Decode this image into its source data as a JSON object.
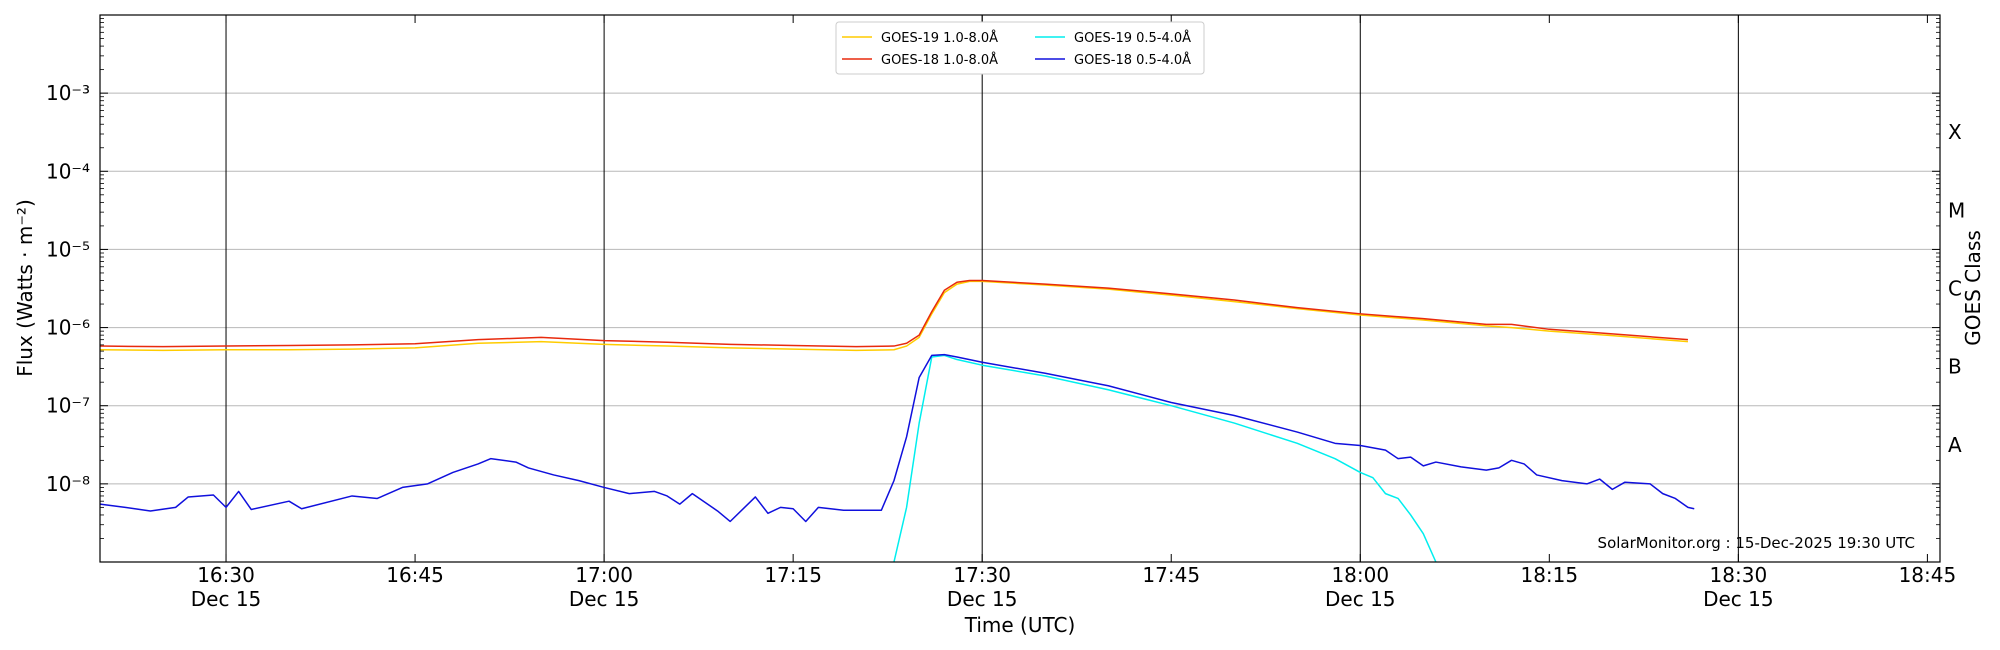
{
  "chart_data": {
    "type": "line",
    "xlabel": "Time (UTC)",
    "ylabel": "Flux (Watts · m⁻²)",
    "ylabel_right": "GOES Class",
    "y_scale": "log",
    "ylim": [
      1e-09,
      0.01
    ],
    "xlim": [
      "16:20",
      "18:46"
    ],
    "y_ticks": [
      {
        "value": 1e-08,
        "label": "10⁻⁸"
      },
      {
        "value": 1e-07,
        "label": "10⁻⁷"
      },
      {
        "value": 1e-06,
        "label": "10⁻⁶"
      },
      {
        "value": 1e-05,
        "label": "10⁻⁵"
      },
      {
        "value": 0.0001,
        "label": "10⁻⁴"
      },
      {
        "value": 0.001,
        "label": "10⁻³"
      }
    ],
    "x_ticks": [
      {
        "time": "16:30",
        "label": "16:30",
        "sublabel": "Dec 15"
      },
      {
        "time": "16:45",
        "label": "16:45",
        "sublabel": ""
      },
      {
        "time": "17:00",
        "label": "17:00",
        "sublabel": "Dec 15"
      },
      {
        "time": "17:15",
        "label": "17:15",
        "sublabel": ""
      },
      {
        "time": "17:30",
        "label": "17:30",
        "sublabel": "Dec 15"
      },
      {
        "time": "17:45",
        "label": "17:45",
        "sublabel": ""
      },
      {
        "time": "18:00",
        "label": "18:00",
        "sublabel": "Dec 15"
      },
      {
        "time": "18:15",
        "label": "18:15",
        "sublabel": ""
      },
      {
        "time": "18:30",
        "label": "18:30",
        "sublabel": "Dec 15"
      },
      {
        "time": "18:45",
        "label": "18:45",
        "sublabel": ""
      }
    ],
    "goes_classes": [
      {
        "label": "A",
        "value": 3.16e-08
      },
      {
        "label": "B",
        "value": 3.16e-07
      },
      {
        "label": "C",
        "value": 3.16e-06
      },
      {
        "label": "M",
        "value": 3.16e-05
      },
      {
        "label": "X",
        "value": 0.000316
      }
    ],
    "grid": "horizontal at decades, vertical at half hours",
    "legend_position": "top-center",
    "series": [
      {
        "name": "GOES-19 1.0-8.0Å",
        "color": "#ffcc00",
        "points": [
          [
            "16:20",
            5.2e-07
          ],
          [
            "16:25",
            5.1e-07
          ],
          [
            "16:30",
            5.2e-07
          ],
          [
            "16:35",
            5.2e-07
          ],
          [
            "16:40",
            5.3e-07
          ],
          [
            "16:45",
            5.5e-07
          ],
          [
            "16:50",
            6.3e-07
          ],
          [
            "16:55",
            6.6e-07
          ],
          [
            "17:00",
            6.1e-07
          ],
          [
            "17:05",
            5.8e-07
          ],
          [
            "17:10",
            5.5e-07
          ],
          [
            "17:15",
            5.3e-07
          ],
          [
            "17:20",
            5.1e-07
          ],
          [
            "17:23",
            5.2e-07
          ],
          [
            "17:24",
            5.8e-07
          ],
          [
            "17:25",
            7.5e-07
          ],
          [
            "17:26",
            1.5e-06
          ],
          [
            "17:27",
            2.8e-06
          ],
          [
            "17:28",
            3.6e-06
          ],
          [
            "17:29",
            3.9e-06
          ],
          [
            "17:30",
            3.9e-06
          ],
          [
            "17:35",
            3.5e-06
          ],
          [
            "17:40",
            3.1e-06
          ],
          [
            "17:45",
            2.6e-06
          ],
          [
            "17:50",
            2.15e-06
          ],
          [
            "17:55",
            1.75e-06
          ],
          [
            "18:00",
            1.45e-06
          ],
          [
            "18:05",
            1.25e-06
          ],
          [
            "18:10",
            1.05e-06
          ],
          [
            "18:12",
            1e-06
          ],
          [
            "18:15",
            9e-07
          ],
          [
            "18:20",
            7.9e-07
          ],
          [
            "18:26",
            6.6e-07
          ]
        ]
      },
      {
        "name": "GOES-18 1.0-8.0Å",
        "color": "#e82a0d",
        "points": [
          [
            "16:20",
            5.8e-07
          ],
          [
            "16:25",
            5.7e-07
          ],
          [
            "16:30",
            5.8e-07
          ],
          [
            "16:35",
            5.9e-07
          ],
          [
            "16:40",
            6e-07
          ],
          [
            "16:45",
            6.2e-07
          ],
          [
            "16:50",
            7e-07
          ],
          [
            "16:55",
            7.5e-07
          ],
          [
            "17:00",
            6.8e-07
          ],
          [
            "17:05",
            6.5e-07
          ],
          [
            "17:10",
            6.1e-07
          ],
          [
            "17:15",
            5.9e-07
          ],
          [
            "17:20",
            5.7e-07
          ],
          [
            "17:23",
            5.8e-07
          ],
          [
            "17:24",
            6.3e-07
          ],
          [
            "17:25",
            8e-07
          ],
          [
            "17:26",
            1.6e-06
          ],
          [
            "17:27",
            3e-06
          ],
          [
            "17:28",
            3.8e-06
          ],
          [
            "17:29",
            4e-06
          ],
          [
            "17:30",
            4e-06
          ],
          [
            "17:35",
            3.6e-06
          ],
          [
            "17:40",
            3.2e-06
          ],
          [
            "17:45",
            2.7e-06
          ],
          [
            "17:50",
            2.25e-06
          ],
          [
            "17:55",
            1.8e-06
          ],
          [
            "18:00",
            1.5e-06
          ],
          [
            "18:05",
            1.3e-06
          ],
          [
            "18:10",
            1.1e-06
          ],
          [
            "18:12",
            1.1e-06
          ],
          [
            "18:15",
            9.5e-07
          ],
          [
            "18:20",
            8.3e-07
          ],
          [
            "18:26",
            7e-07
          ]
        ]
      },
      {
        "name": "GOES-19 0.5-4.0Å",
        "color": "#00eeee",
        "points": [
          [
            "17:23",
            1e-09
          ],
          [
            "17:24",
            5e-09
          ],
          [
            "17:25",
            6e-08
          ],
          [
            "17:26",
            4.2e-07
          ],
          [
            "17:27",
            4.4e-07
          ],
          [
            "17:28",
            3.9e-07
          ],
          [
            "17:30",
            3.3e-07
          ],
          [
            "17:35",
            2.4e-07
          ],
          [
            "17:40",
            1.6e-07
          ],
          [
            "17:45",
            1e-07
          ],
          [
            "17:50",
            6e-08
          ],
          [
            "17:55",
            3.3e-08
          ],
          [
            "17:58",
            2.1e-08
          ],
          [
            "18:00",
            1.4e-08
          ],
          [
            "18:01",
            1.2e-08
          ],
          [
            "18:02",
            7.5e-09
          ],
          [
            "18:03",
            6.5e-09
          ],
          [
            "18:04",
            4e-09
          ],
          [
            "18:05",
            2.3e-09
          ],
          [
            "18:06",
            1e-09
          ]
        ]
      },
      {
        "name": "GOES-18 0.5-4.0Å",
        "color": "#1010dd",
        "points": [
          [
            "16:20",
            5.5e-09
          ],
          [
            "16:22",
            5e-09
          ],
          [
            "16:24",
            4.5e-09
          ],
          [
            "16:26",
            5e-09
          ],
          [
            "16:27",
            6.8e-09
          ],
          [
            "16:29",
            7.2e-09
          ],
          [
            "16:30",
            5e-09
          ],
          [
            "16:31",
            8e-09
          ],
          [
            "16:32",
            4.7e-09
          ],
          [
            "16:35",
            6e-09
          ],
          [
            "16:36",
            4.8e-09
          ],
          [
            "16:40",
            7e-09
          ],
          [
            "16:42",
            6.5e-09
          ],
          [
            "16:44",
            9e-09
          ],
          [
            "16:46",
            1e-08
          ],
          [
            "16:48",
            1.4e-08
          ],
          [
            "16:50",
            1.8e-08
          ],
          [
            "16:51",
            2.1e-08
          ],
          [
            "16:53",
            1.9e-08
          ],
          [
            "16:54",
            1.6e-08
          ],
          [
            "16:56",
            1.3e-08
          ],
          [
            "16:58",
            1.1e-08
          ],
          [
            "17:00",
            9e-09
          ],
          [
            "17:02",
            7.5e-09
          ],
          [
            "17:04",
            8e-09
          ],
          [
            "17:05",
            7e-09
          ],
          [
            "17:06",
            5.5e-09
          ],
          [
            "17:07",
            7.5e-09
          ],
          [
            "17:09",
            4.5e-09
          ],
          [
            "17:10",
            3.3e-09
          ],
          [
            "17:12",
            6.8e-09
          ],
          [
            "17:13",
            4.2e-09
          ],
          [
            "17:14",
            5e-09
          ],
          [
            "17:15",
            4.8e-09
          ],
          [
            "17:16",
            3.3e-09
          ],
          [
            "17:17",
            5e-09
          ],
          [
            "17:19",
            4.6e-09
          ],
          [
            "17:21",
            4.6e-09
          ],
          [
            "17:22",
            4.6e-09
          ],
          [
            "17:23",
            1.1e-08
          ],
          [
            "17:24",
            4e-08
          ],
          [
            "17:25",
            2.3e-07
          ],
          [
            "17:26",
            4.4e-07
          ],
          [
            "17:27",
            4.5e-07
          ],
          [
            "17:28",
            4.2e-07
          ],
          [
            "17:30",
            3.6e-07
          ],
          [
            "17:35",
            2.6e-07
          ],
          [
            "17:40",
            1.8e-07
          ],
          [
            "17:45",
            1.1e-07
          ],
          [
            "17:50",
            7.5e-08
          ],
          [
            "17:55",
            4.6e-08
          ],
          [
            "17:58",
            3.3e-08
          ],
          [
            "18:00",
            3.1e-08
          ],
          [
            "18:02",
            2.7e-08
          ],
          [
            "18:03",
            2.1e-08
          ],
          [
            "18:04",
            2.2e-08
          ],
          [
            "18:05",
            1.7e-08
          ],
          [
            "18:06",
            1.9e-08
          ],
          [
            "18:08",
            1.65e-08
          ],
          [
            "18:10",
            1.5e-08
          ],
          [
            "18:11",
            1.6e-08
          ],
          [
            "18:12",
            2e-08
          ],
          [
            "18:13",
            1.8e-08
          ],
          [
            "18:14",
            1.3e-08
          ],
          [
            "18:16",
            1.1e-08
          ],
          [
            "18:18",
            1e-08
          ],
          [
            "18:19",
            1.15e-08
          ],
          [
            "18:20",
            8.5e-09
          ],
          [
            "18:21",
            1.05e-08
          ],
          [
            "18:23",
            1e-08
          ],
          [
            "18:24",
            7.5e-09
          ],
          [
            "18:25",
            6.5e-09
          ],
          [
            "18:26",
            5e-09
          ],
          [
            "18:26.5",
            4.8e-09
          ]
        ]
      }
    ],
    "footer": "SolarMonitor.org : 15-Dec-2025 19:30 UTC"
  }
}
